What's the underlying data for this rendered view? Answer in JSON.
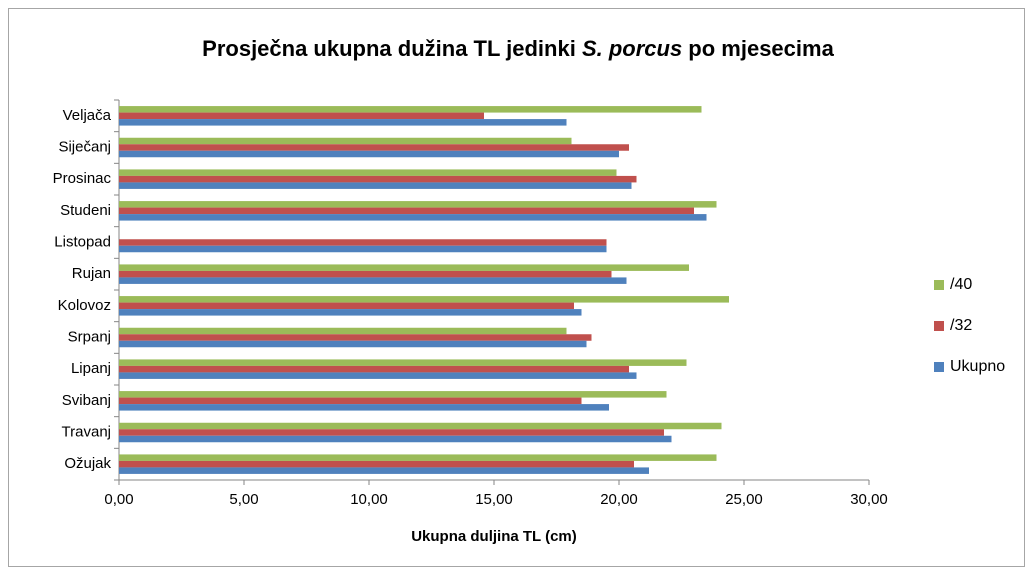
{
  "chart_data": {
    "type": "bar",
    "orientation": "horizontal",
    "title_segments": [
      {
        "text": "Prosječna ukupna dužina TL jedinki ",
        "italic": false
      },
      {
        "text": "S. porcus",
        "italic": true
      },
      {
        "text": " po mjesecima",
        "italic": false
      }
    ],
    "x_label": "Ukupna duljina TL (cm)",
    "categories": [
      "Veljača",
      "Siječanj",
      "Prosinac",
      "Studeni",
      "Listopad",
      "Rujan",
      "Kolovoz",
      "Srpanj",
      "Lipanj",
      "Svibanj",
      "Travanj",
      "Ožujak"
    ],
    "series": [
      {
        "name": "/40",
        "color": "#9bbb59",
        "values": [
          23.3,
          18.1,
          19.9,
          23.9,
          null,
          22.8,
          24.4,
          17.9,
          22.7,
          21.9,
          24.1,
          23.9
        ]
      },
      {
        "name": "/32",
        "color": "#c0504d",
        "values": [
          14.6,
          20.4,
          20.7,
          23.0,
          19.5,
          19.7,
          18.2,
          18.9,
          20.4,
          18.5,
          21.8,
          20.6
        ]
      },
      {
        "name": "Ukupno",
        "color": "#4f81bd",
        "values": [
          17.9,
          20.0,
          20.5,
          23.5,
          19.5,
          20.3,
          18.5,
          18.7,
          20.7,
          19.6,
          22.1,
          21.2
        ]
      }
    ],
    "xlim": [
      0,
      30
    ],
    "xticks": [
      {
        "value": 0,
        "label": "0,00"
      },
      {
        "value": 5,
        "label": "5,00"
      },
      {
        "value": 10,
        "label": "10,00"
      },
      {
        "value": 15,
        "label": "15,00"
      },
      {
        "value": 20,
        "label": "20,00"
      },
      {
        "value": 25,
        "label": "25,00"
      },
      {
        "value": 30,
        "label": "30,00"
      }
    ],
    "grid": false,
    "legend": "right"
  }
}
